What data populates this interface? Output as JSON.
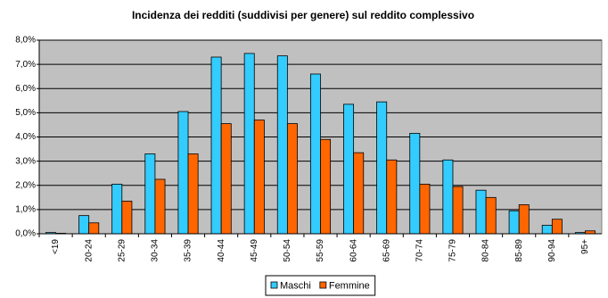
{
  "chart_data": {
    "type": "bar",
    "title": "Incidenza dei redditi (suddivisi per genere) sul reddito complessivo",
    "categories": [
      "<19",
      "20-24",
      "25-29",
      "30-34",
      "35-39",
      "40-44",
      "45-49",
      "50-54",
      "55-59",
      "60-64",
      "65-69",
      "70-74",
      "75-79",
      "80-84",
      "85-89",
      "90-94",
      "95+"
    ],
    "series": [
      {
        "name": "Maschi",
        "color": "#33ccff",
        "values": [
          0.05,
          0.75,
          2.05,
          3.3,
          5.05,
          7.3,
          7.45,
          7.35,
          6.6,
          5.35,
          5.45,
          4.15,
          3.05,
          1.8,
          0.95,
          0.35,
          0.05
        ]
      },
      {
        "name": "Femmine",
        "color": "#ff6600",
        "values": [
          0.02,
          0.45,
          1.35,
          2.25,
          3.3,
          4.55,
          4.7,
          4.55,
          3.9,
          3.35,
          3.05,
          2.05,
          1.95,
          1.5,
          1.2,
          0.6,
          0.12
        ]
      }
    ],
    "ylim": [
      0,
      8
    ],
    "yticks": [
      {
        "value": 0,
        "label": "0,0%"
      },
      {
        "value": 1,
        "label": "1,0%"
      },
      {
        "value": 2,
        "label": "2,0%"
      },
      {
        "value": 3,
        "label": "3,0%"
      },
      {
        "value": 4,
        "label": "4,0%"
      },
      {
        "value": 5,
        "label": "5,0%"
      },
      {
        "value": 6,
        "label": "6,0%"
      },
      {
        "value": 7,
        "label": "7,0%"
      },
      {
        "value": 8,
        "label": "8,0%"
      }
    ],
    "grid": true,
    "legend": "bottom",
    "background": "#c0c0c0"
  }
}
